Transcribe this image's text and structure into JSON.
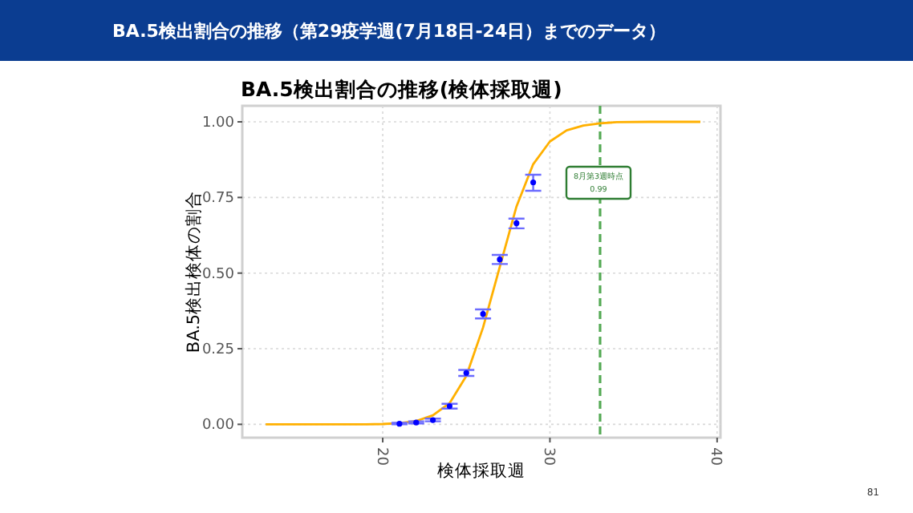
{
  "chart_data": {
    "type": "scatter",
    "title": "BA.5検出割合の推移（第29疫学週(7月18日-24日）までのデータ）",
    "subtitle": "BA.5検出割合の推移(検体採取週)",
    "xlabel": "検体採取週",
    "ylabel": "BA.5検出検体の割合",
    "xlim": [
      11.6,
      40.2
    ],
    "ylim": [
      -0.044,
      1.053
    ],
    "xticks": [
      20,
      30,
      40
    ],
    "yticks": [
      {
        "value": 0,
        "label": "0.00"
      },
      {
        "value": 0.25,
        "label": "0.25"
      },
      {
        "value": 0.5,
        "label": "0.50"
      },
      {
        "value": 0.75,
        "label": "0.75"
      },
      {
        "value": 1,
        "label": "1.00"
      }
    ],
    "grid": true,
    "series": [
      {
        "type": "line",
        "color": "#ffb000",
        "x": [
          13,
          16,
          19,
          20,
          21,
          22,
          23,
          24,
          25,
          26,
          27,
          28,
          29,
          30,
          31,
          32,
          33,
          34,
          36,
          39
        ],
        "values": [
          0,
          0,
          0,
          0.001,
          0.004,
          0.011,
          0.03,
          0.07,
          0.16,
          0.32,
          0.52,
          0.72,
          0.86,
          0.935,
          0.972,
          0.988,
          0.995,
          0.999,
          1,
          1
        ]
      },
      {
        "marker": "circle",
        "color": "#0000ff",
        "x": [
          21,
          22,
          23,
          24,
          25,
          26,
          27,
          28,
          29
        ],
        "values": [
          0.002,
          0.006,
          0.014,
          0.06,
          0.17,
          0.365,
          0.545,
          0.665,
          0.8
        ],
        "errors": [
          [
            0,
            0.005
          ],
          [
            0.003,
            0.01
          ],
          [
            0.01,
            0.019
          ],
          [
            0.052,
            0.068
          ],
          [
            0.16,
            0.18
          ],
          [
            0.35,
            0.38
          ],
          [
            0.53,
            0.56
          ],
          [
            0.648,
            0.68
          ],
          [
            0.772,
            0.825
          ]
        ]
      }
    ],
    "ref_lines": [
      {
        "axis": "x",
        "value": 33,
        "color": "#55aa55",
        "line_style": "dashed"
      }
    ],
    "annotations": [
      "8月第3週時点 0.99",
      "81"
    ]
  }
}
